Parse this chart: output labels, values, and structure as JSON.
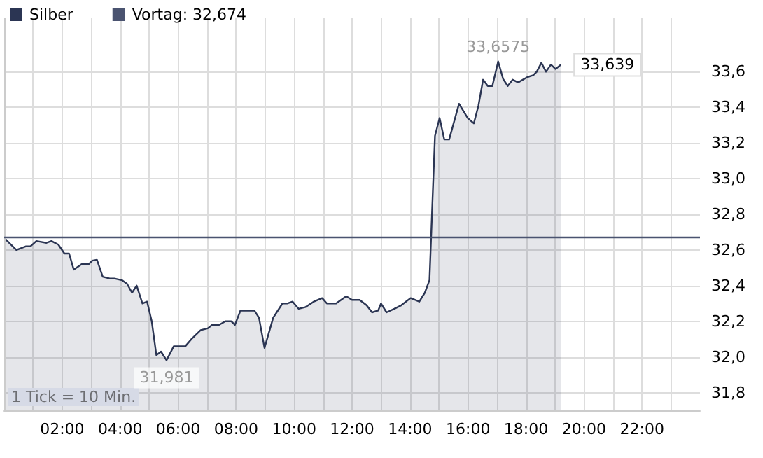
{
  "chart_data": {
    "type": "area",
    "legend": "top left",
    "grid": true,
    "annotations": [
      {
        "text": "33,6575",
        "x": 17.04,
        "y": 33.6575
      },
      {
        "text": "31,981",
        "x": 5.6,
        "y": 31.981
      },
      {
        "text": "33,639",
        "x": 19.2,
        "y": 33.639
      },
      "1 Tick = 10 Min."
    ],
    "xlim": [
      0,
      24
    ],
    "ylim": [
      31.7,
      33.9
    ],
    "xticks": [
      {
        "value": 1,
        "label": null
      },
      {
        "value": 2,
        "label": "02:00"
      },
      {
        "value": 3,
        "label": null
      },
      {
        "value": 4,
        "label": "04:00"
      },
      {
        "value": 5,
        "label": null
      },
      {
        "value": 6,
        "label": "06:00"
      },
      {
        "value": 7,
        "label": null
      },
      {
        "value": 8,
        "label": "08:00"
      },
      {
        "value": 9,
        "label": null
      },
      {
        "value": 10,
        "label": "10:00"
      },
      {
        "value": 11,
        "label": null
      },
      {
        "value": 12,
        "label": "12:00"
      },
      {
        "value": 13,
        "label": null
      },
      {
        "value": 14,
        "label": "14:00"
      },
      {
        "value": 15,
        "label": null
      },
      {
        "value": 16,
        "label": "16:00"
      },
      {
        "value": 17,
        "label": null
      },
      {
        "value": 18,
        "label": "18:00"
      },
      {
        "value": 19,
        "label": null
      },
      {
        "value": 20,
        "label": "20:00"
      },
      {
        "value": 21,
        "label": null
      },
      {
        "value": 22,
        "label": "22:00"
      },
      {
        "value": 23,
        "label": null
      }
    ],
    "yticks": [
      {
        "value": 31.8,
        "label": "31,8"
      },
      {
        "value": 32.0,
        "label": "32,0"
      },
      {
        "value": 32.2,
        "label": "32,2"
      },
      {
        "value": 32.4,
        "label": "32,4"
      },
      {
        "value": 32.6,
        "label": "32,6"
      },
      {
        "value": 32.8,
        "label": "32,8"
      },
      {
        "value": 33.0,
        "label": "33,0"
      },
      {
        "value": 33.2,
        "label": "33,2"
      },
      {
        "value": 33.4,
        "label": "33,4"
      },
      {
        "value": 33.6,
        "label": "33,6"
      }
    ],
    "ref_lines": [
      {
        "axis": "y",
        "value": 32.674,
        "label": "Vortag: 32,674",
        "color": "#4a5370"
      }
    ],
    "series": [
      {
        "name": "Silber",
        "color": "#2b3553",
        "x": [
          0.05,
          0.42,
          0.74,
          0.9,
          1.11,
          1.46,
          1.63,
          1.87,
          2.08,
          2.24,
          2.4,
          2.67,
          2.91,
          3.04,
          3.2,
          3.4,
          3.64,
          3.8,
          4.07,
          4.24,
          4.41,
          4.57,
          4.77,
          4.93,
          5.09,
          5.25,
          5.41,
          5.6,
          5.85,
          6.05,
          6.25,
          6.46,
          6.78,
          7.02,
          7.18,
          7.42,
          7.63,
          7.83,
          7.96,
          8.15,
          8.63,
          8.79,
          8.98,
          9.28,
          9.6,
          9.76,
          9.95,
          10.16,
          10.4,
          10.68,
          10.97,
          11.13,
          11.45,
          11.8,
          12.0,
          12.26,
          12.5,
          12.69,
          12.9,
          13.0,
          13.19,
          13.46,
          13.7,
          14.02,
          14.32,
          14.51,
          14.67,
          14.86,
          15.02,
          15.18,
          15.35,
          15.69,
          15.99,
          16.2,
          16.36,
          16.52,
          16.68,
          16.84,
          17.04,
          17.21,
          17.37,
          17.54,
          17.73,
          18.05,
          18.25,
          18.37,
          18.53,
          18.69,
          18.86,
          19.02,
          19.2
        ],
        "values": [
          32.66,
          32.6,
          32.62,
          32.62,
          32.65,
          32.64,
          32.65,
          32.63,
          32.58,
          32.58,
          32.49,
          32.52,
          32.52,
          32.54,
          32.545,
          32.45,
          32.44,
          32.44,
          32.43,
          32.41,
          32.36,
          32.4,
          32.3,
          32.31,
          32.2,
          32.01,
          32.03,
          31.981,
          32.06,
          32.06,
          32.06,
          32.1,
          32.15,
          32.16,
          32.18,
          32.18,
          32.2,
          32.2,
          32.18,
          32.26,
          32.26,
          32.22,
          32.05,
          32.22,
          32.3,
          32.3,
          32.31,
          32.27,
          32.28,
          32.31,
          32.33,
          32.3,
          32.3,
          32.34,
          32.32,
          32.32,
          32.29,
          32.25,
          32.26,
          32.3,
          32.25,
          32.27,
          32.29,
          32.33,
          32.31,
          32.36,
          32.43,
          33.24,
          33.34,
          33.22,
          33.22,
          33.42,
          33.34,
          33.31,
          33.41,
          33.555,
          33.52,
          33.52,
          33.6575,
          33.56,
          33.52,
          33.555,
          33.54,
          33.57,
          33.58,
          33.6,
          33.65,
          33.6,
          33.64,
          33.615,
          33.639
        ]
      }
    ]
  }
}
